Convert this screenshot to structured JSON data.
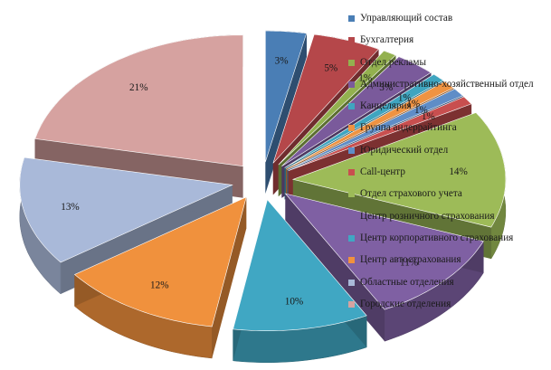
{
  "chart_data": {
    "type": "pie",
    "variant": "3d-exploded",
    "legend_position": "right",
    "categories": [
      "Управляющий состав",
      "Бухгалтерия",
      "Отдел рекламы",
      "Административно-хозяйственный отдел",
      "Канцелярия",
      "Группа андеррайтинга",
      "Юридический отдел",
      "Call-центр",
      "Отдел страхового учета",
      "Центр розничного страхования",
      "Центр корпоративного страхования",
      "Центр автострахования",
      "Областные отделения",
      "Городские отделения"
    ],
    "values": [
      3,
      5,
      1,
      3,
      1,
      1,
      1,
      1,
      14,
      11,
      10,
      12,
      13,
      21
    ],
    "data_labels": [
      "3%",
      "5%",
      "1%",
      "3%",
      "1%",
      "1%",
      "1%",
      "1%",
      "14%",
      "11%",
      "10%",
      "12%",
      "13%",
      "21%"
    ],
    "colors": [
      "#4a7eb5",
      "#b5474a",
      "#93b14f",
      "#7a5a9b",
      "#3fa5c0",
      "#ef9342",
      "#5f8dc7",
      "#c84f4f",
      "#9dbb58",
      "#7f60a3",
      "#40a7c3",
      "#f0913d",
      "#a9b9d9",
      "#d6a2a0"
    ]
  }
}
